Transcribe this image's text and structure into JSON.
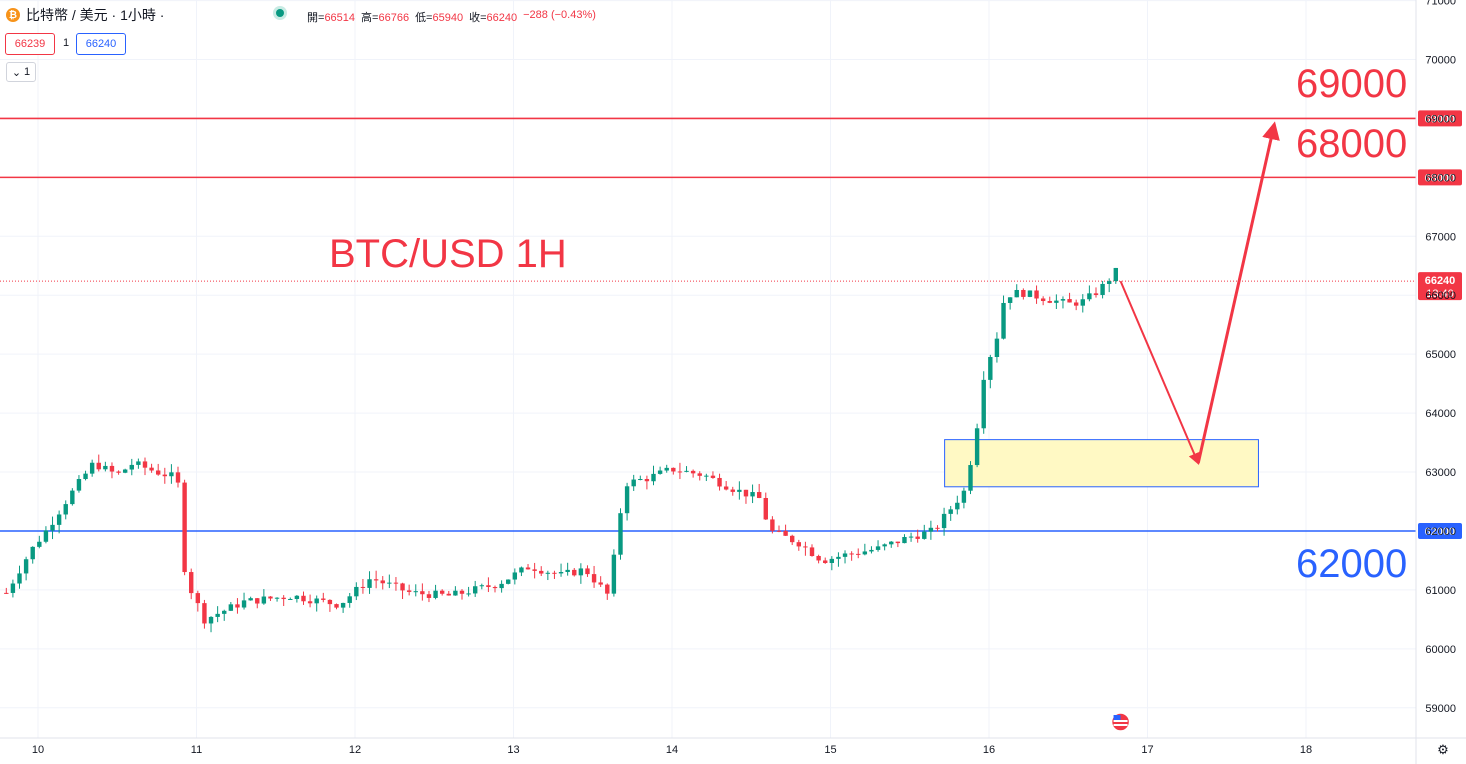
{
  "header": {
    "symbol": "比特幣 / 美元 · 1小時 ·",
    "coin_letter": "₿",
    "ohlc": [
      {
        "label": "開=",
        "value": "66514"
      },
      {
        "label": "高=",
        "value": "66766"
      },
      {
        "label": "低=",
        "value": "65940"
      },
      {
        "label": "收=",
        "value": "66240"
      },
      {
        "label": "",
        "value": "−288 (−0.43%)"
      }
    ],
    "bid": "66239",
    "spread": "1",
    "ask": "66240",
    "indicator_count": "1"
  },
  "annotations": {
    "title": "BTC/USD 1H",
    "level_69000": "69000",
    "level_68000": "68000",
    "level_62000": "62000"
  },
  "colors": {
    "up": "#089981",
    "down": "#f23645",
    "resistance": "#f23645",
    "support": "#2962ff",
    "zone_fill": "#fff9c4"
  },
  "chart_data": {
    "type": "candlestick",
    "title": "BTC/USD 1H",
    "timeframe": "1H",
    "y_ticks": [
      59000,
      60000,
      61000,
      62000,
      63000,
      64000,
      65000,
      66000,
      67000,
      68000,
      69000,
      70000,
      71000
    ],
    "x_ticks": [
      "10",
      "11",
      "12",
      "13",
      "14",
      "15",
      "16",
      "17",
      "18"
    ],
    "ylim": [
      58800,
      71000
    ],
    "current_price": {
      "value": 66240,
      "label": "66240",
      "countdown": "13:40"
    },
    "horizontal_lines": [
      {
        "value": 69000,
        "label": "69000",
        "color": "#f23645"
      },
      {
        "value": 68000,
        "label": "68000",
        "color": "#f23645"
      },
      {
        "value": 62000,
        "label": "62000",
        "color": "#2962ff"
      }
    ],
    "zone": {
      "x_start": 15.72,
      "x_end": 17.7,
      "y_low": 62750,
      "y_high": 63550
    },
    "projection_path": [
      [
        16.83,
        66240
      ],
      [
        17.32,
        63150
      ],
      [
        17.8,
        68900
      ]
    ],
    "price_path": [
      [
        9.8,
        60950
      ],
      [
        9.95,
        61650
      ],
      [
        10.05,
        62000
      ],
      [
        10.2,
        62600
      ],
      [
        10.35,
        63150
      ],
      [
        10.5,
        62950
      ],
      [
        10.6,
        63150
      ],
      [
        10.75,
        63000
      ],
      [
        10.88,
        62900
      ],
      [
        10.93,
        61200
      ],
      [
        11.05,
        60500
      ],
      [
        11.3,
        60800
      ],
      [
        11.6,
        60900
      ],
      [
        11.9,
        60750
      ],
      [
        12.1,
        61200
      ],
      [
        12.35,
        60950
      ],
      [
        12.6,
        60900
      ],
      [
        12.9,
        61100
      ],
      [
        13.1,
        61400
      ],
      [
        13.3,
        61250
      ],
      [
        13.45,
        61350
      ],
      [
        13.6,
        60900
      ],
      [
        13.7,
        62800
      ],
      [
        13.85,
        62900
      ],
      [
        14.0,
        63050
      ],
      [
        14.2,
        62950
      ],
      [
        14.4,
        62700
      ],
      [
        14.55,
        62550
      ],
      [
        14.62,
        62000
      ],
      [
        14.8,
        61800
      ],
      [
        14.95,
        61500
      ],
      [
        15.1,
        61600
      ],
      [
        15.3,
        61700
      ],
      [
        15.5,
        61900
      ],
      [
        15.65,
        62000
      ],
      [
        15.75,
        62350
      ],
      [
        15.85,
        62700
      ],
      [
        15.92,
        63700
      ],
      [
        15.97,
        64700
      ],
      [
        16.05,
        65300
      ],
      [
        16.1,
        66000
      ],
      [
        16.2,
        66050
      ],
      [
        16.35,
        65950
      ],
      [
        16.5,
        65850
      ],
      [
        16.6,
        65900
      ],
      [
        16.7,
        66100
      ],
      [
        16.8,
        66400
      ],
      [
        16.83,
        66240
      ]
    ]
  }
}
